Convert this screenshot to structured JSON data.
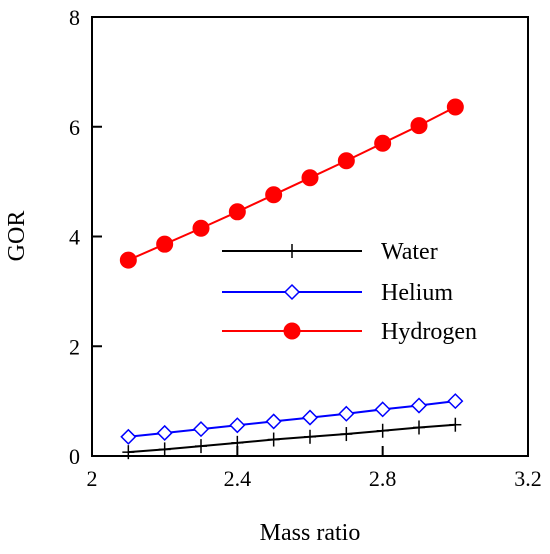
{
  "chart_data": {
    "type": "line",
    "title": "",
    "xlabel": "Mass ratio",
    "ylabel": "GOR",
    "xlim": [
      2,
      3.2
    ],
    "ylim": [
      0,
      8
    ],
    "xticks": [
      2,
      2.4,
      2.8,
      3.2
    ],
    "yticks": [
      0,
      2,
      4,
      6,
      8
    ],
    "xtick_labels": [
      "2",
      "2.4",
      "2.8",
      "3.2"
    ],
    "ytick_labels": [
      "0",
      "2",
      "4",
      "6",
      "8"
    ],
    "grid": false,
    "legend_position": "center",
    "x": [
      2.1,
      2.2,
      2.3,
      2.4,
      2.5,
      2.6,
      2.7,
      2.8,
      2.9,
      3.0
    ],
    "series": [
      {
        "name": "Water",
        "color": "#000000",
        "marker": "plus",
        "values": [
          0.07,
          0.12,
          0.18,
          0.24,
          0.3,
          0.35,
          0.4,
          0.46,
          0.52,
          0.57
        ]
      },
      {
        "name": "Helium",
        "color": "#0000ff",
        "marker": "diamond-open",
        "values": [
          0.35,
          0.42,
          0.49,
          0.56,
          0.63,
          0.7,
          0.77,
          0.85,
          0.92,
          1.0
        ]
      },
      {
        "name": "Hydrogen",
        "color": "#ff0000",
        "marker": "circle-filled",
        "values": [
          3.57,
          3.86,
          4.15,
          4.45,
          4.76,
          5.07,
          5.38,
          5.7,
          6.02,
          6.36
        ]
      }
    ]
  }
}
